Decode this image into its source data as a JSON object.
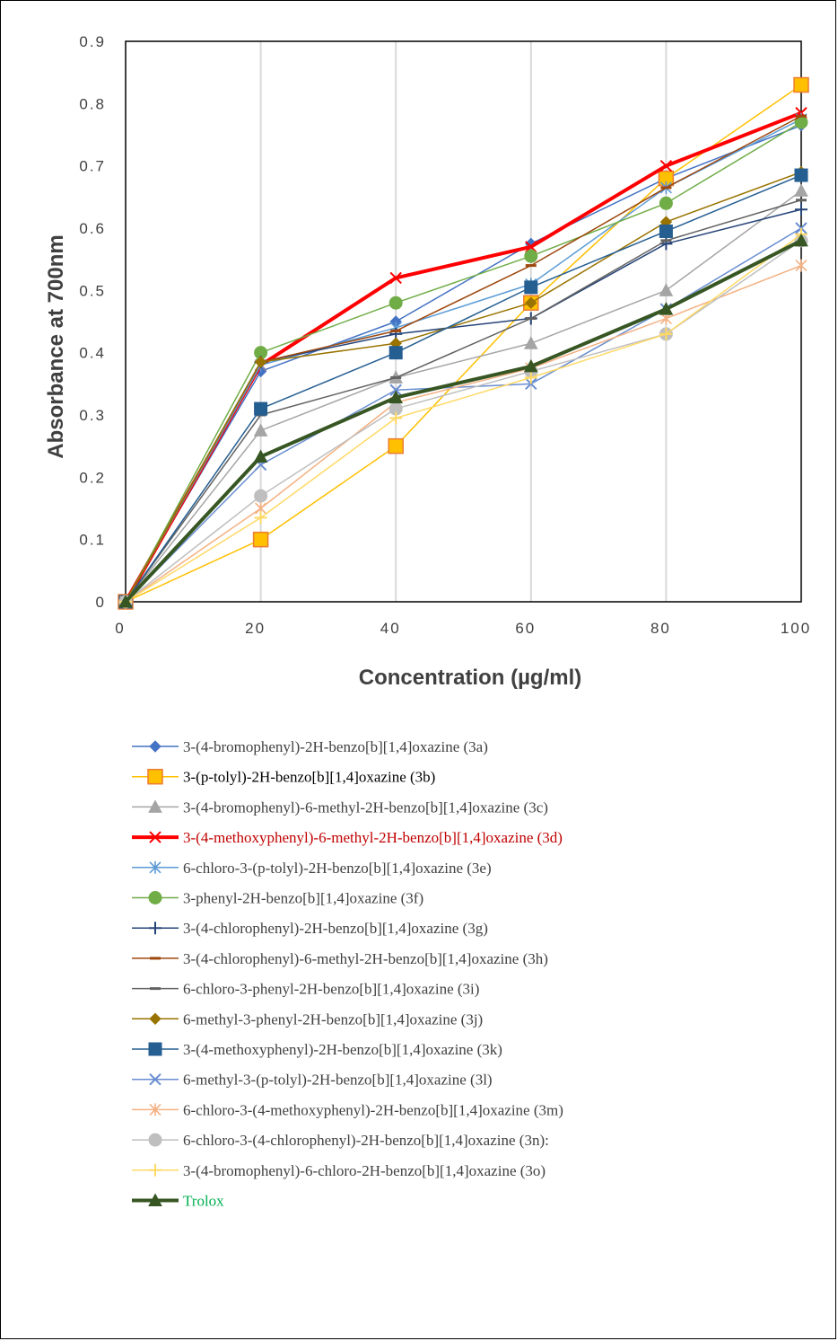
{
  "chart_data": {
    "type": "line",
    "xlabel": "Concentration (µg/ml)",
    "ylabel": "Absorbance at 700nm",
    "xlim": [
      0,
      100
    ],
    "ylim": [
      0,
      0.9
    ],
    "x_ticks": [
      "0",
      "20",
      "40",
      "60",
      "80",
      "100"
    ],
    "y_ticks": [
      "0",
      "0.1",
      "0.2",
      "0.3",
      "0.4",
      "0.5",
      "0.6",
      "0.7",
      "0.8",
      "0.9"
    ],
    "grid": "vertical",
    "legend_position": "bottom",
    "x": [
      0,
      20,
      40,
      60,
      80,
      100
    ],
    "series": [
      {
        "name": "3-(4-bromophenyl)-2H-benzo[b][1,4]oxazine (3a)",
        "values": [
          0,
          0.37,
          0.45,
          0.575,
          0.68,
          0.765
        ],
        "color": "#4472c4",
        "marker": "diamond",
        "text_color": "#404040"
      },
      {
        "name": "3-(p-tolyl)-2H-benzo[b][1,4]oxazine (3b)",
        "values": [
          0,
          0.1,
          0.25,
          0.48,
          0.68,
          0.83
        ],
        "color": "#ffc000",
        "marker": "square-big",
        "text_color": "#000000"
      },
      {
        "name": "3-(4-bromophenyl)-6-methyl-2H-benzo[b][1,4]oxazine (3c)",
        "values": [
          0,
          0.275,
          0.36,
          0.415,
          0.5,
          0.66
        ],
        "color": "#a5a5a5",
        "marker": "triangle",
        "text_color": "#404040"
      },
      {
        "name": "3-(4-methoxyphenyl)-6-methyl-2H-benzo[b][1,4]oxazine (3d)",
        "values": [
          0,
          0.38,
          0.52,
          0.57,
          0.7,
          0.785
        ],
        "color": "#ff0000",
        "marker": "x",
        "text_color": "#c00000",
        "bold": true
      },
      {
        "name": "6-chloro-3-(p-tolyl)-2H-benzo[b][1,4]oxazine (3e)",
        "values": [
          0,
          0.38,
          0.44,
          0.51,
          0.665,
          0.775
        ],
        "color": "#5b9bd5",
        "marker": "star",
        "text_color": "#404040"
      },
      {
        "name": "3-phenyl-2H-benzo[b][1,4]oxazine (3f)",
        "values": [
          0,
          0.4,
          0.48,
          0.555,
          0.64,
          0.77
        ],
        "color": "#70ad47",
        "marker": "circle",
        "text_color": "#404040"
      },
      {
        "name": "3-(4-chlorophenyl)-2H-benzo[b][1,4]oxazine (3g)",
        "values": [
          0,
          0.385,
          0.43,
          0.455,
          0.575,
          0.63
        ],
        "color": "#264478",
        "marker": "plus",
        "text_color": "#404040"
      },
      {
        "name": "3-(4-chlorophenyl)-6-methyl-2H-benzo[b][1,4]oxazine (3h)",
        "values": [
          0,
          0.385,
          0.435,
          0.54,
          0.665,
          0.78
        ],
        "color": "#9e480e",
        "marker": "dash",
        "text_color": "#404040"
      },
      {
        "name": "6-chloro-3-phenyl-2H-benzo[b][1,4]oxazine (3i)",
        "values": [
          0,
          0.3,
          0.36,
          0.455,
          0.58,
          0.645
        ],
        "color": "#636363",
        "marker": "dash",
        "text_color": "#404040"
      },
      {
        "name": "6-methyl-3-phenyl-2H-benzo[b][1,4]oxazine (3j)",
        "values": [
          0,
          0.385,
          0.415,
          0.48,
          0.61,
          0.69
        ],
        "color": "#997300",
        "marker": "diamond",
        "text_color": "#404040"
      },
      {
        "name": "3-(4-methoxyphenyl)-2H-benzo[b][1,4]oxazine (3k)",
        "values": [
          0,
          0.31,
          0.4,
          0.505,
          0.595,
          0.685
        ],
        "color": "#255e91",
        "marker": "square",
        "text_color": "#404040"
      },
      {
        "name": "6-methyl-3-(p-tolyl)-2H-benzo[b][1,4]oxazine (3l)",
        "values": [
          0,
          0.22,
          0.34,
          0.35,
          0.47,
          0.6
        ],
        "color": "#698ed0",
        "marker": "x",
        "text_color": "#404040"
      },
      {
        "name": "6-chloro-3-(4-methoxyphenyl)-2H-benzo[b][1,4]oxazine (3m)",
        "values": [
          0,
          0.15,
          0.32,
          0.375,
          0.455,
          0.54
        ],
        "color": "#f4b183",
        "marker": "star",
        "text_color": "#404040"
      },
      {
        "name": "6-chloro-3-(4-chlorophenyl)-2H-benzo[b][1,4]oxazine (3n):",
        "values": [
          0,
          0.17,
          0.31,
          0.37,
          0.43,
          0.58
        ],
        "color": "#bfbfbf",
        "marker": "circle",
        "text_color": "#404040"
      },
      {
        "name": "3-(4-bromophenyl)-6-chloro-2H-benzo[b][1,4]oxazine (3o)",
        "values": [
          0,
          0.135,
          0.295,
          0.36,
          0.43,
          0.59
        ],
        "color": "#ffd966",
        "marker": "plus",
        "text_color": "#404040"
      },
      {
        "name": "Trolox",
        "values": [
          0,
          0.233,
          0.328,
          0.378,
          0.47,
          0.58
        ],
        "color": "#375623",
        "marker": "triangle",
        "text_color": "#00b050",
        "bold": true
      }
    ]
  }
}
